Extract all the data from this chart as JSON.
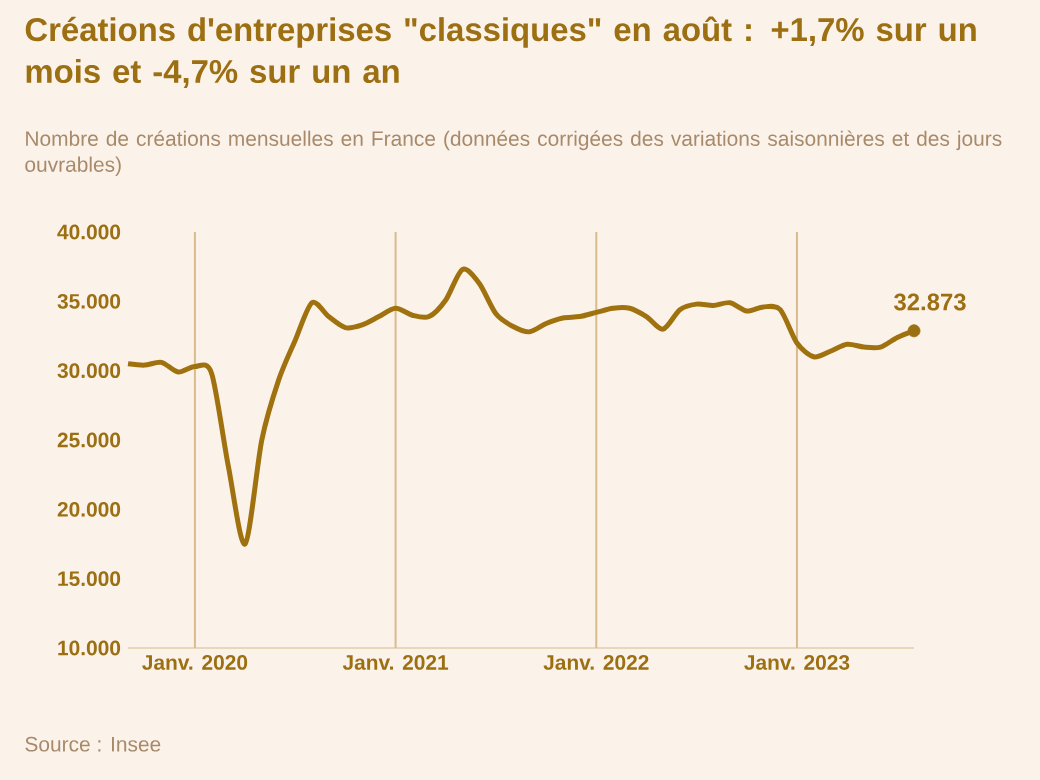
{
  "chart_data": {
    "type": "line",
    "title": "Créations d'entreprises \"classiques\" en août : +1,7% sur un mois et -4,7% sur un an",
    "subtitle": "Nombre de créations mensuelles en France (données corrigées des variations saisonnières et des jours ouvrables)",
    "x": [
      "2019-09",
      "2019-10",
      "2019-11",
      "2019-12",
      "2020-01",
      "2020-02",
      "2020-03",
      "2020-04",
      "2020-05",
      "2020-06",
      "2020-07",
      "2020-08",
      "2020-09",
      "2020-10",
      "2020-11",
      "2020-12",
      "2021-01",
      "2021-02",
      "2021-03",
      "2021-04",
      "2021-05",
      "2021-06",
      "2021-07",
      "2021-08",
      "2021-09",
      "2021-10",
      "2021-11",
      "2021-12",
      "2022-01",
      "2022-02",
      "2022-03",
      "2022-04",
      "2022-05",
      "2022-06",
      "2022-07",
      "2022-08",
      "2022-09",
      "2022-10",
      "2022-11",
      "2022-12",
      "2023-01",
      "2023-02",
      "2023-03",
      "2023-04",
      "2023-05",
      "2023-06",
      "2023-07",
      "2023-08"
    ],
    "series": [
      {
        "color": "#a0720f",
        "line_style": "solid",
        "values": [
          30500,
          30400,
          30600,
          29900,
          30300,
          29800,
          23100,
          17500,
          25000,
          29300,
          32200,
          34900,
          33900,
          33100,
          33300,
          33900,
          34500,
          34000,
          33900,
          35100,
          37300,
          36300,
          34100,
          33200,
          32800,
          33400,
          33800,
          33900,
          34200,
          34500,
          34500,
          33900,
          33000,
          34400,
          34800,
          34700,
          34900,
          34300,
          34600,
          34400,
          32000,
          31000,
          31400,
          31900,
          31700,
          31700,
          32400,
          32873
        ],
        "value_labels": [
          null,
          null,
          null,
          null,
          null,
          null,
          null,
          null,
          null,
          null,
          null,
          null,
          null,
          null,
          null,
          null,
          null,
          null,
          null,
          null,
          null,
          null,
          null,
          null,
          null,
          null,
          null,
          null,
          null,
          null,
          null,
          null,
          null,
          null,
          null,
          null,
          null,
          null,
          null,
          null,
          null,
          null,
          null,
          null,
          null,
          null,
          null,
          "32.873"
        ]
      }
    ],
    "xticks": [
      {
        "value": "2020-01",
        "label": "Janv. 2020"
      },
      {
        "value": "2021-01",
        "label": "Janv. 2021"
      },
      {
        "value": "2022-01",
        "label": "Janv. 2022"
      },
      {
        "value": "2023-01",
        "label": "Janv. 2023"
      }
    ],
    "xlim": [
      "2019-09",
      "2023-08"
    ],
    "ylim": [
      10000,
      40000
    ],
    "yticks": [
      {
        "value": 10000,
        "label": "10.000"
      },
      {
        "value": 15000,
        "label": "15.000"
      },
      {
        "value": 20000,
        "label": "20.000"
      },
      {
        "value": 25000,
        "label": "25.000"
      },
      {
        "value": 30000,
        "label": "30.000"
      },
      {
        "value": 35000,
        "label": "35.000"
      },
      {
        "value": 40000,
        "label": "40.000"
      }
    ],
    "grid": "x",
    "marker": "none",
    "annotations": [
      "Source : Insee"
    ]
  }
}
